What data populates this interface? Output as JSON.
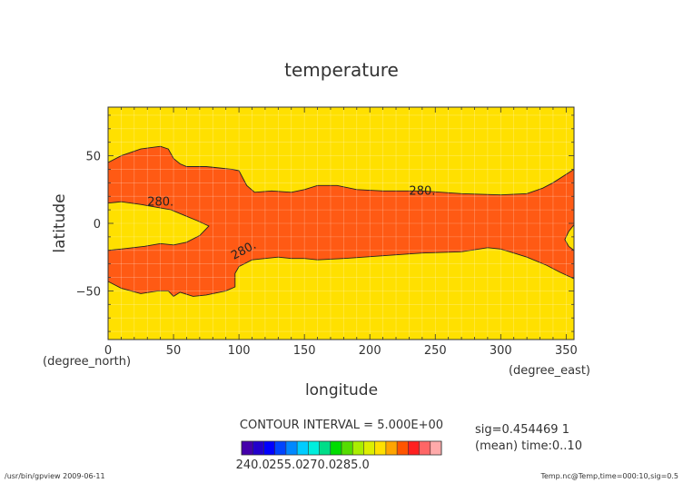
{
  "chart_data": {
    "type": "heatmap",
    "title": "temperature",
    "xlabel": "longitude",
    "ylabel": "latitude",
    "x_unit_label": "(degree_east)",
    "y_unit_label": "(degree_north)",
    "xlim": [
      0,
      356
    ],
    "ylim": [
      -86,
      86
    ],
    "x_ticks": [
      0,
      50,
      100,
      150,
      200,
      250,
      300,
      350
    ],
    "y_ticks": [
      -50,
      0,
      50
    ],
    "grid": true,
    "contour_interval_label": "CONTOUR INTERVAL = 5.000E+00",
    "contour_labels": [
      "280.",
      "280.",
      "280."
    ],
    "contour_280_outline": {
      "north_boundary": [
        [
          0,
          45
        ],
        [
          10,
          50
        ],
        [
          25,
          55
        ],
        [
          40,
          57
        ],
        [
          46,
          55
        ],
        [
          50,
          48
        ],
        [
          55,
          44
        ],
        [
          60,
          42
        ],
        [
          75,
          42
        ],
        [
          85,
          41
        ],
        [
          95,
          40
        ],
        [
          100,
          39
        ],
        [
          106,
          28
        ],
        [
          112,
          23
        ],
        [
          125,
          24
        ],
        [
          140,
          23
        ],
        [
          150,
          25
        ],
        [
          160,
          28
        ],
        [
          175,
          28
        ],
        [
          190,
          25
        ],
        [
          210,
          24
        ],
        [
          240,
          24
        ],
        [
          270,
          22
        ],
        [
          300,
          21
        ],
        [
          320,
          22
        ],
        [
          332,
          26
        ],
        [
          340,
          30
        ],
        [
          356,
          40
        ]
      ],
      "south_boundary": [
        [
          0,
          -43
        ],
        [
          10,
          -48
        ],
        [
          25,
          -52
        ],
        [
          38,
          -50
        ],
        [
          46,
          -50
        ],
        [
          50,
          -54
        ],
        [
          55,
          -51
        ],
        [
          65,
          -54
        ],
        [
          75,
          -53
        ],
        [
          90,
          -50
        ],
        [
          97,
          -47
        ],
        [
          97,
          -37
        ],
        [
          100,
          -32
        ],
        [
          110,
          -27
        ],
        [
          130,
          -25
        ],
        [
          140,
          -26
        ],
        [
          150,
          -26
        ],
        [
          160,
          -27
        ],
        [
          180,
          -26
        ],
        [
          210,
          -24
        ],
        [
          240,
          -22
        ],
        [
          270,
          -21
        ],
        [
          290,
          -18
        ],
        [
          300,
          -19
        ],
        [
          310,
          -22
        ],
        [
          320,
          -25
        ],
        [
          335,
          -31
        ],
        [
          345,
          -36
        ],
        [
          356,
          -41
        ]
      ],
      "western_hole": [
        [
          0,
          15
        ],
        [
          10,
          16
        ],
        [
          25,
          14
        ],
        [
          48,
          10
        ],
        [
          58,
          6
        ],
        [
          68,
          2
        ],
        [
          77,
          -2
        ],
        [
          70,
          -9
        ],
        [
          60,
          -14
        ],
        [
          50,
          -16
        ],
        [
          40,
          -15
        ],
        [
          28,
          -17
        ],
        [
          10,
          -19
        ],
        [
          0,
          -20
        ]
      ],
      "east_edge_notch": [
        [
          356,
          -1
        ],
        [
          352,
          -6
        ],
        [
          349,
          -12
        ],
        [
          352,
          -17
        ],
        [
          356,
          -20
        ]
      ]
    },
    "colorbar": {
      "tick_labels": [
        "240.0",
        "255.0",
        "270.0",
        "285.0"
      ],
      "colors": [
        "#4400aa",
        "#2200cc",
        "#0000ff",
        "#0044ff",
        "#0088ff",
        "#00ccff",
        "#00eedd",
        "#00dd88",
        "#00dd00",
        "#55dd00",
        "#aaee00",
        "#ddee00",
        "#ffe000",
        "#ffa500",
        "#ff5500",
        "#ff2020",
        "#ff6666",
        "#ffaaaa"
      ]
    },
    "colors": {
      "below_280": "#ffe000",
      "above_280": "#ff5a14",
      "contour_line": "#222222"
    }
  },
  "side_info": {
    "line1": "sig=0.454469 1",
    "line2": "(mean) time:0..10"
  },
  "footer": {
    "left": "/usr/bin/gpview  2009-06-11",
    "right": "Temp.nc@Temp,time=000:10,sig=0.5"
  }
}
